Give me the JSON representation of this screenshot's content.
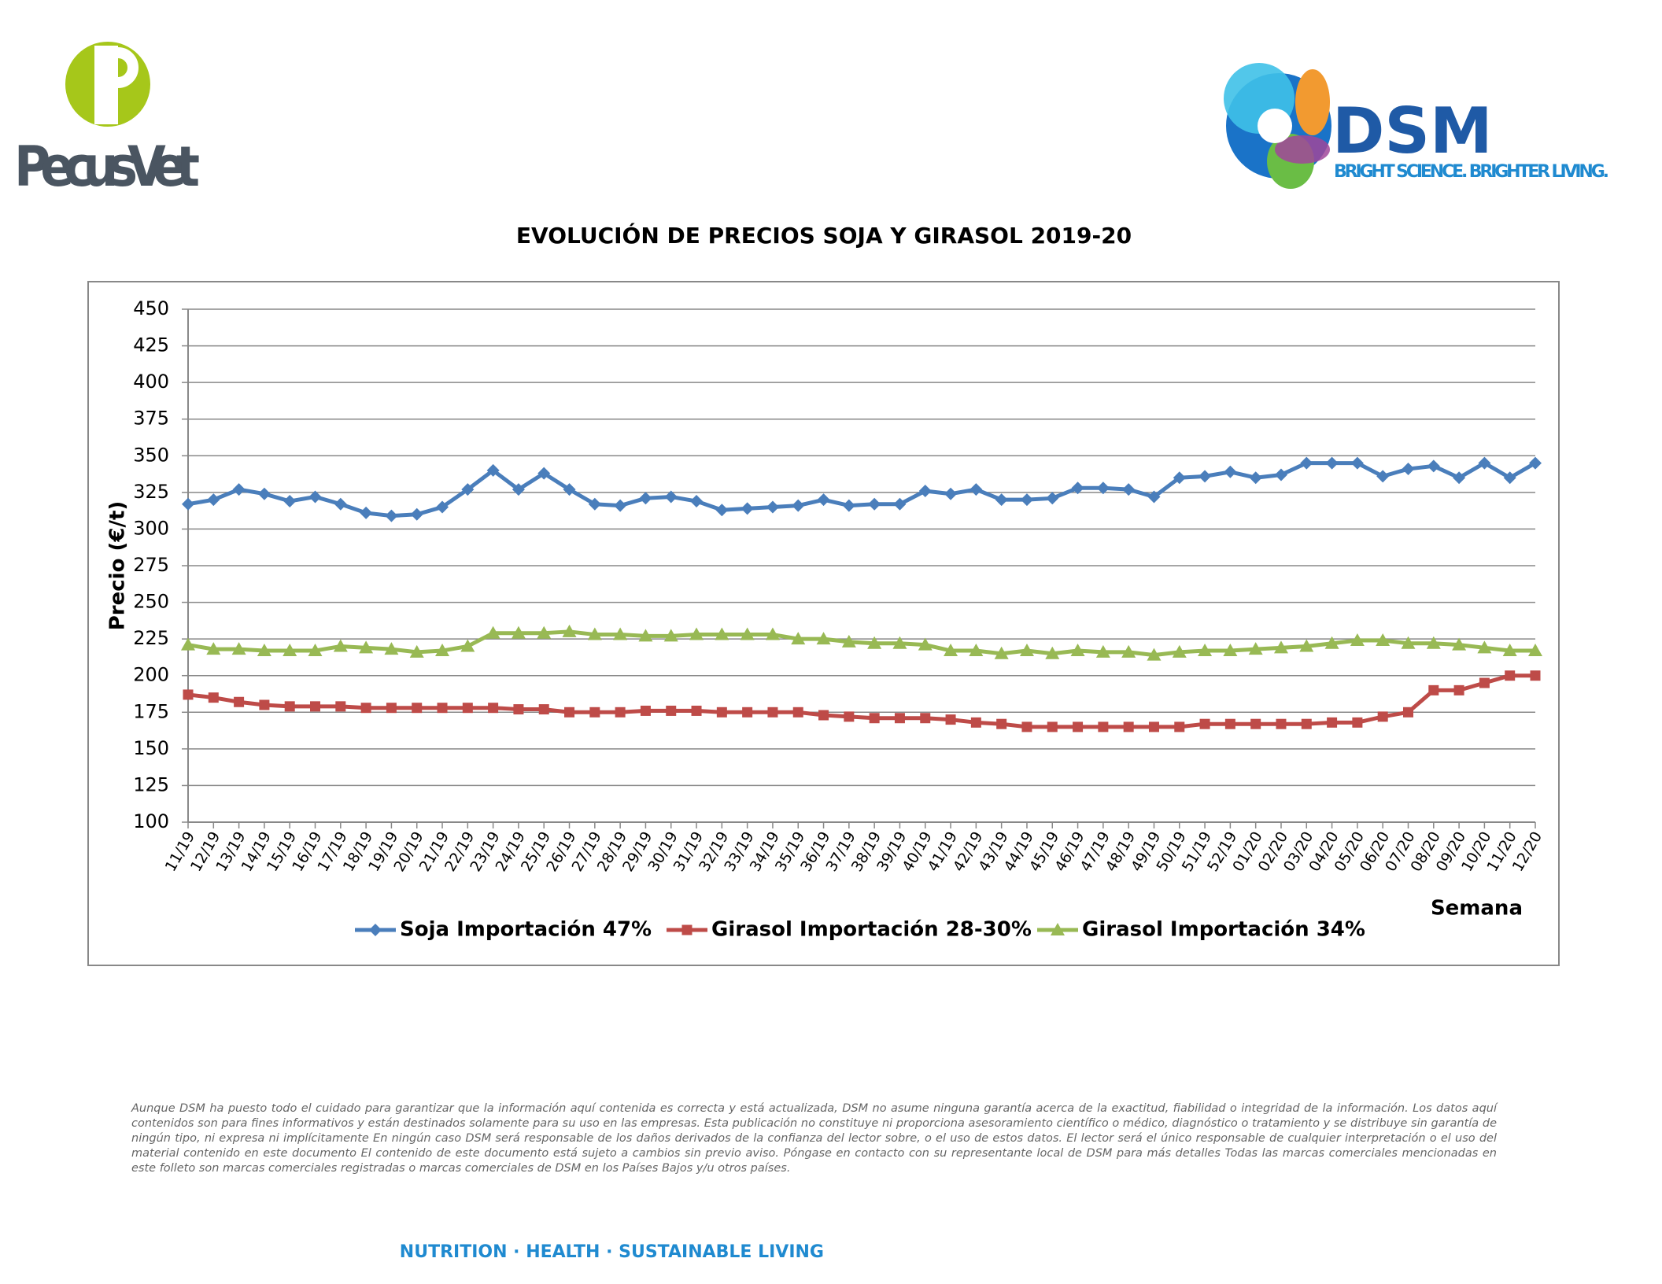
{
  "header": {
    "brand_left": "PecusVet",
    "brand_right": "DSM",
    "tagline": "BRIGHT SCIENCE. BRIGHTER LIVING."
  },
  "chart_data": {
    "type": "line",
    "title": "EVOLUCIÓN DE PRECIOS SOJA Y GIRASOL 2019-20",
    "x_label": "Semana",
    "y_label": "Precio (€/t)",
    "categories": [
      "11/19",
      "12/19",
      "13/19",
      "14/19",
      "15/19",
      "16/19",
      "17/19",
      "18/19",
      "19/19",
      "20/19",
      "21/19",
      "22/19",
      "23/19",
      "24/19",
      "25/19",
      "26/19",
      "27/19",
      "28/19",
      "29/19",
      "30/19",
      "31/19",
      "32/19",
      "33/19",
      "34/19",
      "35/19",
      "36/19",
      "37/19",
      "38/19",
      "39/19",
      "40/19",
      "41/19",
      "42/19",
      "43/19",
      "44/19",
      "45/19",
      "46/19",
      "47/19",
      "48/19",
      "49/19",
      "50/19",
      "51/19",
      "52/19",
      "01/20",
      "02/20",
      "03/20",
      "04/20",
      "05/20",
      "06/20",
      "07/20",
      "08/20",
      "09/20",
      "10/20",
      "11/20",
      "12/20"
    ],
    "series": [
      {
        "name": "Soja Importación 47%",
        "color": "#4a7ebb",
        "marker": "diamond",
        "values": [
          317,
          320,
          327,
          324,
          319,
          322,
          317,
          311,
          309,
          310,
          315,
          327,
          340,
          327,
          338,
          327,
          317,
          316,
          321,
          322,
          319,
          313,
          314,
          315,
          316,
          320,
          316,
          317,
          317,
          326,
          324,
          327,
          320,
          320,
          321,
          328,
          328,
          327,
          322,
          335,
          336,
          339,
          335,
          337,
          345,
          345,
          345,
          336,
          341,
          343,
          335,
          345,
          335,
          345
        ]
      },
      {
        "name": "Girasol Importación 28-30%",
        "color": "#be4b48",
        "marker": "square",
        "values": [
          187,
          185,
          182,
          180,
          179,
          179,
          179,
          178,
          178,
          178,
          178,
          178,
          178,
          177,
          177,
          175,
          175,
          175,
          176,
          176,
          176,
          175,
          175,
          175,
          175,
          173,
          172,
          171,
          171,
          171,
          170,
          168,
          167,
          165,
          165,
          165,
          165,
          165,
          165,
          165,
          167,
          167,
          167,
          167,
          167,
          168,
          168,
          172,
          175,
          190,
          190,
          195,
          200,
          200
        ]
      },
      {
        "name": "Girasol Importación 34%",
        "color": "#98b954",
        "marker": "triangle",
        "values": [
          221,
          218,
          218,
          217,
          217,
          217,
          220,
          219,
          218,
          216,
          217,
          220,
          229,
          229,
          229,
          230,
          228,
          228,
          227,
          227,
          228,
          228,
          228,
          228,
          225,
          225,
          223,
          222,
          222,
          221,
          217,
          217,
          215,
          217,
          215,
          217,
          216,
          216,
          214,
          216,
          217,
          217,
          218,
          219,
          220,
          222,
          224,
          224,
          222,
          222,
          221,
          219,
          217,
          217
        ]
      }
    ],
    "ylim": [
      100,
      450
    ],
    "yticks": [
      100,
      125,
      150,
      175,
      200,
      225,
      250,
      275,
      300,
      325,
      350,
      375,
      400,
      425,
      450
    ],
    "grid": true,
    "legend": "bottom"
  },
  "disclaimer": "Aunque DSM ha puesto todo el cuidado para garantizar que la información aquí contenida es correcta y está actualizada, DSM no asume ninguna garantía acerca de la exactitud, fiabilidad o integridad de la información. Los datos aquí contenidos son para fines informativos y están destinados solamente para su uso en las empresas. Esta publicación no constituye ni proporciona asesoramiento científico o médico, diagnóstico o tratamiento y se distribuye sin garantía de ningún tipo, ni expresa ni implícitamente En ningún caso DSM será responsable de los daños derivados de la confianza del lector sobre, o el uso de estos datos. El lector será el único responsable de cualquier interpretación o el uso del material contenido en este documento El contenido de este documento está sujeto a cambios sin previo aviso. Póngase en contacto con su representante local de DSM para más detalles Todas las marcas comerciales mencionadas en este folleto son marcas comerciales registradas o marcas comerciales de DSM en los Países Bajos y/u otros países.",
  "footer": "NUTRITION · HEALTH · SUSTAINABLE LIVING"
}
